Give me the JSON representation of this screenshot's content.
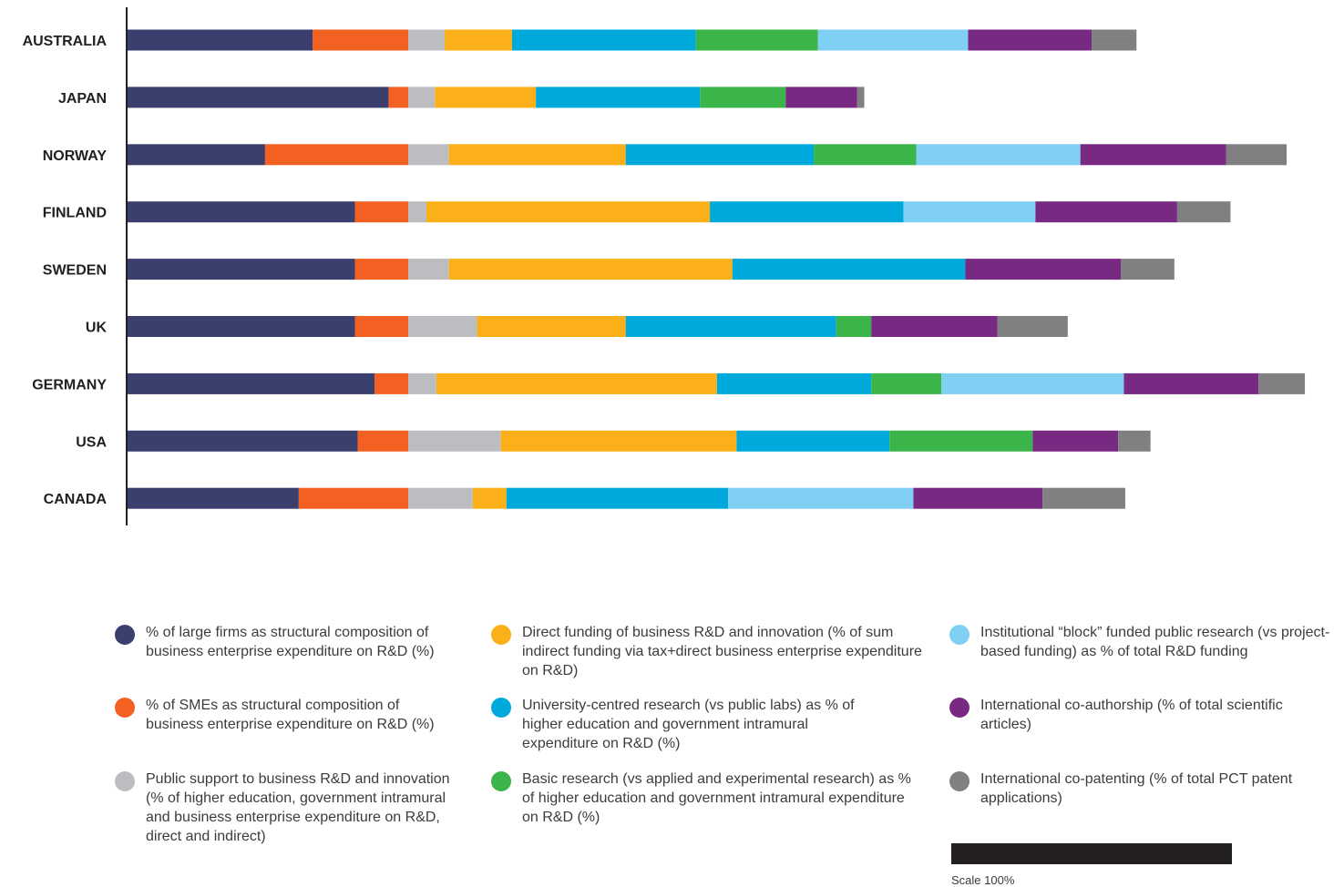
{
  "chart_data": {
    "type": "bar",
    "orientation": "horizontal",
    "stacked": true,
    "categories": [
      "AUSTRALIA",
      "JAPAN",
      "NORWAY",
      "FINLAND",
      "SWEDEN",
      "UK",
      "GERMANY",
      "USA",
      "CANADA"
    ],
    "series": [
      {
        "name": "% of large firms as structural composition of business enterprise expenditure on R&D (%)",
        "color": "#3a3f6e",
        "values": [
          66,
          93,
          49,
          81,
          81,
          81,
          88,
          82,
          61
        ]
      },
      {
        "name": "% of SMEs as structural composition of business enterprise expenditure on R&D (%)",
        "color": "#f26022",
        "values": [
          34,
          7,
          51,
          19,
          19,
          19,
          12,
          18,
          39
        ]
      },
      {
        "name": "Public support to business R&D and innovation (% of higher education, government intramural and business enterprise expenditure on R&D, direct and indirect)",
        "color": "#bcbdc0",
        "values": [
          13,
          9.5,
          14.5,
          6.5,
          14.5,
          24.5,
          10,
          33,
          23
        ]
      },
      {
        "name": "Direct funding of business R&D and innovation (% of sum indirect funding via tax+direct business enterprise expenditure on R&D)",
        "color": "#fbb01a",
        "values": [
          24,
          36,
          63,
          101,
          101,
          53,
          100,
          84,
          12
        ]
      },
      {
        "name": "University-centred research (vs public labs) as % of higher education and government intramural expenditure on R&D (%)",
        "color": "#00a9dc",
        "values": [
          65.5,
          58.5,
          67,
          69,
          83,
          75,
          55,
          54.5,
          79
        ]
      },
      {
        "name": "Basic research (vs applied and experimental research) as % of higher education and government intramural expenditure on R&D (%)",
        "color": "#3bb449",
        "values": [
          43.5,
          30.5,
          36.5,
          0,
          0,
          12.5,
          25,
          51,
          0
        ]
      },
      {
        "name": "Institutional “block” funded public research (vs project-based funding) as % of total R&D funding",
        "color": "#7fd0f3",
        "values": [
          53.5,
          0,
          58.5,
          47,
          0,
          0,
          65,
          0,
          66
        ]
      },
      {
        "name": "International co-authorship (% of total scientific articles)",
        "color": "#782981",
        "values": [
          44,
          25.5,
          52,
          50.5,
          55.5,
          45,
          48,
          30.5,
          46
        ]
      },
      {
        "name": "International co-patenting (% of total PCT patent applications)",
        "color": "#808083",
        "values": [
          16,
          2.5,
          21.5,
          19,
          19,
          25,
          16.5,
          11.5,
          29.5
        ]
      }
    ],
    "xlim": [
      0,
      440
    ],
    "scale_reference_value": 100,
    "legend_position": "bottom",
    "grid": false
  },
  "legend": {
    "items": [
      "% of large firms as structural composition of business enterprise expenditure on R&D (%)",
      "% of SMEs as structural composition of business enterprise expenditure on R&D (%)",
      "Public support to business R&D and innovation (% of higher education, government intramural and business enterprise expenditure on R&D, direct and indirect)",
      "Direct funding of business R&D and innovation (% of sum indirect funding via tax+direct business enterprise expenditure on R&D)",
      "University-centred research (vs public labs) as % of higher education and government intramural expenditure on R&D (%)",
      "Basic research (vs applied and experimental research) as % of higher education and government intramural expenditure on R&D (%)",
      "Institutional “block” funded public research (vs project-based funding) as % of total R&D funding",
      "International co-authorship (% of total scientific articles)",
      "International co-patenting (% of total PCT patent applications)"
    ]
  },
  "scale": {
    "label": "Scale 100%"
  }
}
